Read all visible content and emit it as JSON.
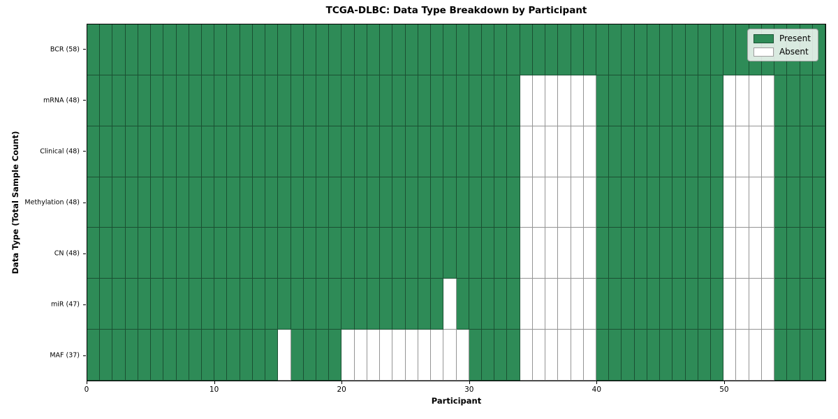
{
  "chart_data": {
    "type": "heatmap",
    "title": "TCGA-DLBC: Data Type Breakdown by Participant",
    "xlabel": "Participant",
    "ylabel": "Data Type (Total Sample Count)",
    "n_participants": 58,
    "x_ticks": [
      0,
      10,
      20,
      30,
      40,
      50
    ],
    "xlim": [
      0,
      58
    ],
    "grid": true,
    "legend_position": "upper right",
    "colors": {
      "present": "#2E8B57",
      "absent": "#FFFFFF",
      "grid_line": "rgba(0,0,0,0.42)"
    },
    "legend": [
      {
        "label": "Present",
        "color_key": "present"
      },
      {
        "label": "Absent",
        "color_key": "absent"
      }
    ],
    "rows": [
      {
        "label": "BCR (58)",
        "data_type": "BCR",
        "sample_count": 58,
        "absent_participants": []
      },
      {
        "label": "mRNA (48)",
        "data_type": "mRNA",
        "sample_count": 48,
        "absent_participants": [
          34,
          35,
          36,
          37,
          38,
          39,
          50,
          51,
          52,
          53
        ]
      },
      {
        "label": "Clinical (48)",
        "data_type": "Clinical",
        "sample_count": 48,
        "absent_participants": [
          34,
          35,
          36,
          37,
          38,
          39,
          50,
          51,
          52,
          53
        ]
      },
      {
        "label": "Methylation (48)",
        "data_type": "Methylation",
        "sample_count": 48,
        "absent_participants": [
          34,
          35,
          36,
          37,
          38,
          39,
          50,
          51,
          52,
          53
        ]
      },
      {
        "label": "CN (48)",
        "data_type": "CN",
        "sample_count": 48,
        "absent_participants": [
          34,
          35,
          36,
          37,
          38,
          39,
          50,
          51,
          52,
          53
        ]
      },
      {
        "label": "miR (47)",
        "data_type": "miR",
        "sample_count": 47,
        "absent_participants": [
          28,
          34,
          35,
          36,
          37,
          38,
          39,
          50,
          51,
          52,
          53
        ]
      },
      {
        "label": "MAF (37)",
        "data_type": "MAF",
        "sample_count": 37,
        "absent_participants": [
          15,
          20,
          21,
          22,
          23,
          24,
          25,
          26,
          27,
          28,
          29,
          34,
          35,
          36,
          37,
          38,
          39,
          50,
          51,
          52,
          53
        ]
      }
    ]
  }
}
